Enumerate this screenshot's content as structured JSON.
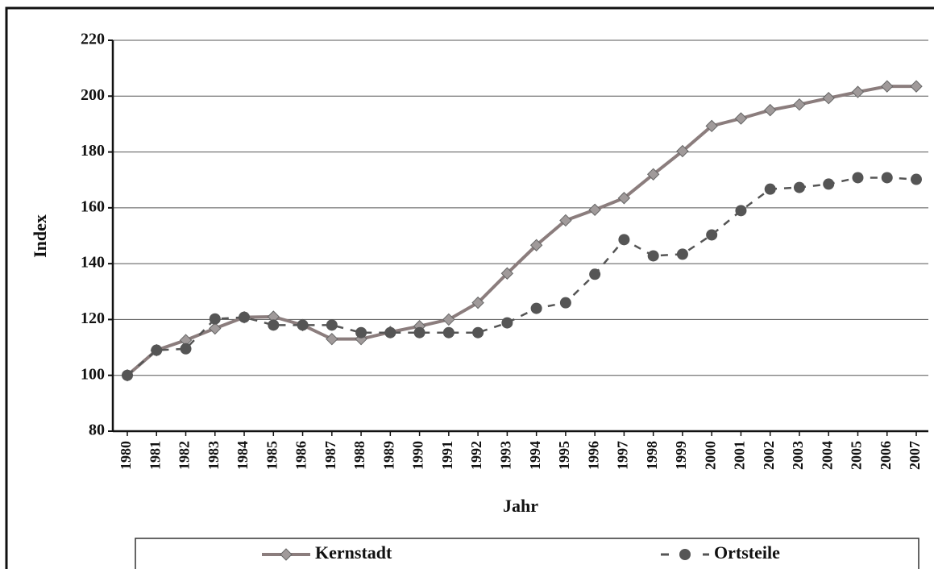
{
  "chart_data": {
    "type": "line",
    "x_label": "Jahr",
    "y_label": "Index",
    "categories": [
      "1980",
      "1981",
      "1982",
      "1983",
      "1984",
      "1985",
      "1986",
      "1987",
      "1988",
      "1989",
      "1990",
      "1991",
      "1992",
      "1993",
      "1994",
      "1995",
      "1996",
      "1997",
      "1998",
      "1999",
      "2000",
      "2001",
      "2002",
      "2003",
      "2004",
      "2005",
      "2006",
      "2007"
    ],
    "series": [
      {
        "name": "Kernstadt",
        "color": "#8b7d7d",
        "marker": "diamond",
        "dashed": false,
        "values": [
          100,
          109,
          112.6,
          116.8,
          120.8,
          121,
          118,
          113,
          113,
          115.5,
          117.6,
          120,
          126,
          136.5,
          146.6,
          155.5,
          159.3,
          163.5,
          172,
          180.3,
          189.3,
          192,
          195,
          197,
          199.3,
          201.5,
          203.5,
          203.5
        ]
      },
      {
        "name": "Ortsteile",
        "color": "#555555",
        "marker": "circle",
        "dashed": true,
        "values": [
          100,
          109,
          109.5,
          120.2,
          120.8,
          118,
          118,
          118,
          115.3,
          115.3,
          115.3,
          115.3,
          115.3,
          118.8,
          124,
          126,
          136.2,
          148.6,
          142.8,
          143.4,
          150.3,
          159,
          166.7,
          167.3,
          168.5,
          170.8,
          170.8,
          170.2
        ]
      }
    ],
    "ylim": [
      80,
      220
    ],
    "yticks": [
      80,
      100,
      120,
      140,
      160,
      180,
      200,
      220
    ],
    "grid": true,
    "legend": "bottom"
  }
}
